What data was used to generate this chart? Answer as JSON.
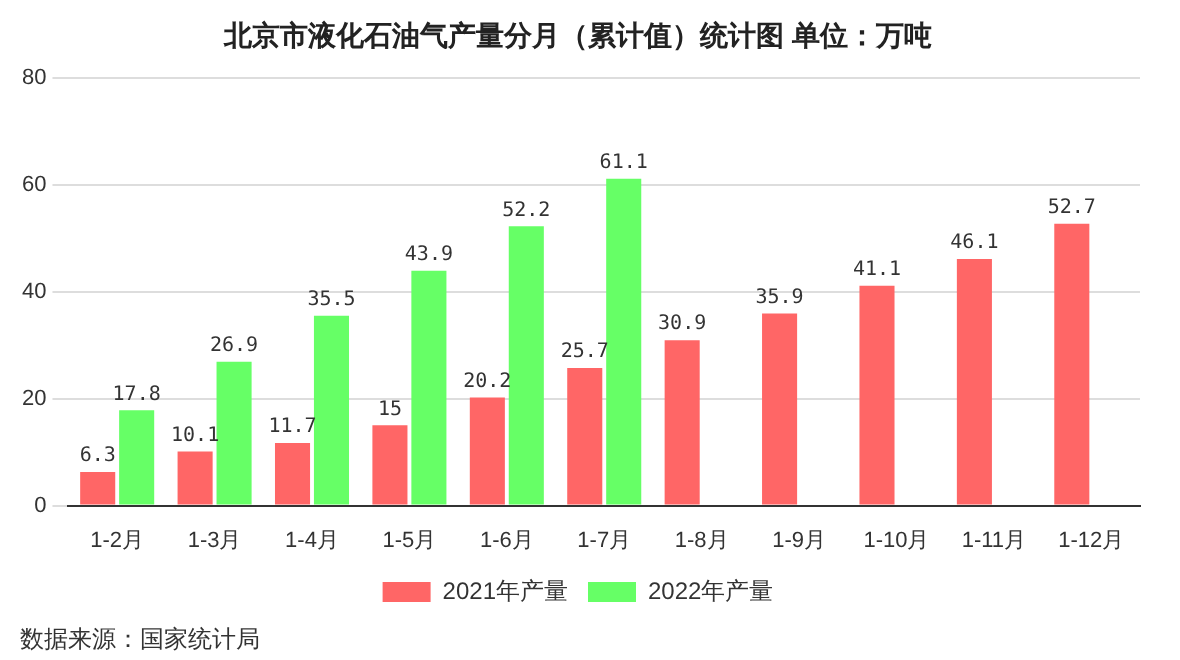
{
  "chart_data": {
    "type": "bar",
    "title": "北京市液化石油气产量分月（累计值）统计图 单位：万吨",
    "categories": [
      "1-2月",
      "1-3月",
      "1-4月",
      "1-5月",
      "1-6月",
      "1-7月",
      "1-8月",
      "1-9月",
      "1-10月",
      "1-11月",
      "1-12月"
    ],
    "series": [
      {
        "name": "2021年产量",
        "color": "#ff6666",
        "values": [
          6.3,
          10.1,
          11.7,
          15,
          20.2,
          25.7,
          30.9,
          35.9,
          41.1,
          46.1,
          52.7
        ]
      },
      {
        "name": "2022年产量",
        "color": "#66ff66",
        "values": [
          17.8,
          26.9,
          35.5,
          43.9,
          52.2,
          61.1,
          null,
          null,
          null,
          null,
          null
        ]
      }
    ],
    "ylim": [
      0,
      80
    ],
    "yticks": [
      0,
      20,
      40,
      60,
      80
    ],
    "grid": "y",
    "legend": "bottom",
    "data_labels": true,
    "annotations": [
      "数据来源：国家统计局"
    ]
  }
}
